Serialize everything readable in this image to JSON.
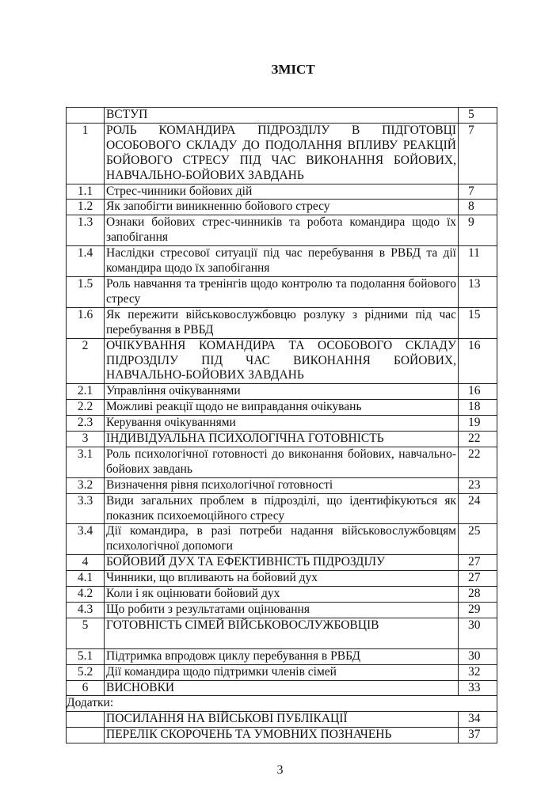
{
  "title": "ЗМІСТ",
  "rows": [
    {
      "num": "",
      "text": "ВСТУП",
      "page": "5"
    },
    {
      "num": "1",
      "text": "РОЛЬ КОМАНДИРА ПІДРОЗДІЛУ В ПІДГОТОВЦІ ОСОБОВОГО СКЛАДУ ДО ПОДОЛАННЯ ВПЛИВУ РЕАКЦІЙ БОЙОВОГО СТРЕСУ ПІД ЧАС ВИКОНАННЯ БОЙОВИХ, НАВЧАЛЬНО-БОЙОВИХ ЗАВДАНЬ",
      "page": "7"
    },
    {
      "num": "1.1",
      "text": "Стрес-чинники бойових дій",
      "page": "7"
    },
    {
      "num": "1.2",
      "text": "Як запобігти виникненню бойового стресу",
      "page": "8"
    },
    {
      "num": "1.3",
      "text": "Ознаки бойових стрес-чинників та робота командира щодо їх запобігання",
      "page": "9"
    },
    {
      "num": "1.4",
      "text": "Наслідки стресової ситуації під час перебування в РВБД та дії командира щодо їх запобігання",
      "page": "11"
    },
    {
      "num": "1.5",
      "text": "Роль навчання та тренінгів щодо контролю та подолання бойового стресу",
      "page": "13"
    },
    {
      "num": "1.6",
      "text": "Як пережити військовослужбовцю  розлуку з рідними під час перебування в РВБД",
      "page": "15"
    },
    {
      "num": "2",
      "text": "ОЧІКУВАННЯ КОМАНДИРА ТА ОСОБОВОГО СКЛАДУ ПІДРОЗДІЛУ ПІД ЧАС ВИКОНАННЯ БОЙОВИХ, НАВЧАЛЬНО-БОЙОВИХ ЗАВДАНЬ",
      "page": "16"
    },
    {
      "num": "2.1",
      "text": "Управління очікуваннями",
      "page": "16"
    },
    {
      "num": "2.2",
      "text": "Можливі реакції щодо не виправдання очікувань",
      "page": "18"
    },
    {
      "num": "2.3",
      "text": "Керування очікуваннями",
      "page": "19"
    },
    {
      "num": "3",
      "text": "ІНДИВІДУАЛЬНА ПСИХОЛОГІЧНА ГОТОВНІСТЬ",
      "page": "22"
    },
    {
      "num": "3.1",
      "text": "Роль психологічної готовності до виконання бойових, навчально-бойових завдань",
      "page": "22"
    },
    {
      "num": "3.2",
      "text": "Визначення рівня психологічної готовності",
      "page": "23"
    },
    {
      "num": "3.3",
      "text": "Види загальних проблем в підрозділі, що ідентифікуються як показник психоемоційного стресу",
      "page": "24"
    },
    {
      "num": "3.4",
      "text": "Дії командира, в разі потреби надання військовослужбовцям психологічної допомоги",
      "page": "25"
    },
    {
      "num": "4",
      "text": "БОЙОВИЙ ДУХ ТА ЕФЕКТИВНІСТЬ ПІДРОЗДІЛУ",
      "page": "27"
    },
    {
      "num": "4.1",
      "text": "Чинники, що впливають на бойовий дух",
      "page": "27"
    },
    {
      "num": "4.2",
      "text": "Коли і як оцінювати бойовий дух",
      "page": "28"
    },
    {
      "num": "4.3",
      "text": "Що робити з результатами оцінювання",
      "page": "29"
    },
    {
      "num": "5",
      "text": "ГОТОВНІСТЬ СІМЕЙ ВІЙСЬКОВОСЛУЖБОВЦІВ",
      "page": "30"
    },
    {
      "num": "5.1",
      "text": "Підтримка впродовж циклу перебування в РВБД",
      "page": "30"
    },
    {
      "num": "5.2",
      "text": "Дії командира щодо підтримки членів сімей",
      "page": "32"
    },
    {
      "num": "6",
      "text": "ВИСНОВКИ",
      "page": "33"
    }
  ],
  "appendix_label": "Додатки:",
  "appendix_rows": [
    {
      "num": "",
      "text": "ПОСИЛАННЯ НА ВІЙСЬКОВІ ПУБЛІКАЦІЇ",
      "page": "34"
    },
    {
      "num": "",
      "text": "ПЕРЕЛІК СКОРОЧЕНЬ ТА УМОВНИХ ПОЗНАЧЕНЬ",
      "page": "37"
    }
  ],
  "page_number": "3"
}
